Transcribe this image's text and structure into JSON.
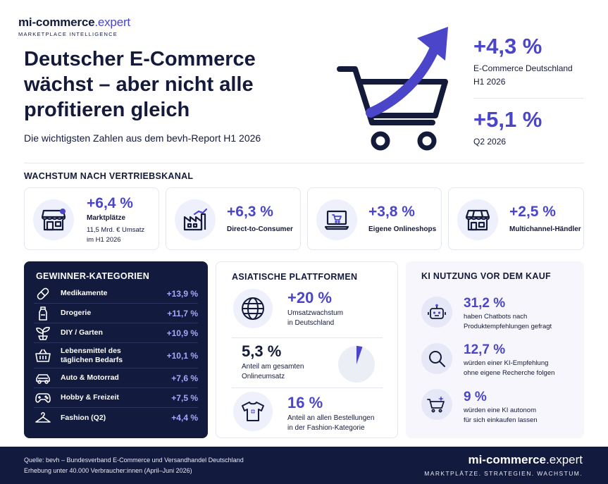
{
  "brand": {
    "name_bold": "mi-commerce",
    "name_light": ".expert",
    "tagline": "MARKETPLACE INTELLIGENCE"
  },
  "headline": {
    "title": "Deutscher E-Commerce wächst – aber nicht alle profitieren gleich",
    "subtitle": "Die wichtigsten Zahlen aus dem bevh-Report H1 2026"
  },
  "kpis": [
    {
      "value": "+4,3 %",
      "label_line1": "E-Commerce Deutschland",
      "label_line2": "H1 2026"
    },
    {
      "value": "+5,1 %",
      "label_line1": "Q2 2026",
      "label_line2": ""
    }
  ],
  "channels": {
    "title": "WACHSTUM NACH VERTRIEBSKANAL",
    "items": [
      {
        "value": "+6,4 %",
        "label": "Marktplätze",
        "sub_line1": "11,5 Mrd. € Umsatz",
        "sub_line2": "im H1 2026",
        "icon": "storefront-icon"
      },
      {
        "value": "+6,3 %",
        "label": "Direct-to-Consumer",
        "icon": "factory-icon"
      },
      {
        "value": "+3,8 %",
        "label": "Eigene Onlineshops",
        "icon": "laptop-cart-icon"
      },
      {
        "value": "+2,5 %",
        "label": "Multichannel-Händler",
        "icon": "shop-awning-icon"
      }
    ]
  },
  "winners": {
    "title": "GEWINNER-KATEGORIEN",
    "items": [
      {
        "name": "Medikamente",
        "value": "+13,9 %",
        "icon": "pill-icon"
      },
      {
        "name": "Drogerie",
        "value": "+11,7 %",
        "icon": "bottle-icon"
      },
      {
        "name": "DIY / Garten",
        "value": "+10,9 %",
        "icon": "plant-icon"
      },
      {
        "name_line1": "Lebensmittel des",
        "name_line2": "täglichen Bedarfs",
        "value": "+10,1 %",
        "icon": "basket-icon"
      },
      {
        "name": "Auto & Motorrad",
        "value": "+7,6 %",
        "icon": "car-icon"
      },
      {
        "name": "Hobby & Freizeit",
        "value": "+7,5 %",
        "icon": "gamepad-icon"
      },
      {
        "name": "Fashion (Q2)",
        "value": "+4,4 %",
        "icon": "hanger-icon"
      }
    ]
  },
  "asia": {
    "title": "ASIATISCHE PLATTFORMEN",
    "growth": {
      "value": "+20 %",
      "label_line1": "Umsatzwachstum",
      "label_line2": "in Deutschland",
      "icon": "globe-icon"
    },
    "share": {
      "value": "5,3 %",
      "label_line1": "Anteil am gesamten",
      "label_line2": "Onlineumsatz",
      "fraction": 0.053
    },
    "fashion": {
      "value": "16 %",
      "label_line1": "Anteil an allen Bestellungen",
      "label_line2": "in der Fashion-Kategorie",
      "icon": "tshirt-icon"
    }
  },
  "ai": {
    "title": "KI NUTZUNG VOR DEM KAUF",
    "items": [
      {
        "value": "31,2 %",
        "label_line1": "haben Chatbots nach",
        "label_line2": "Produktempfehlungen gefragt",
        "icon": "robot-icon"
      },
      {
        "value": "12,7 %",
        "label_line1": "würden einer KI-Empfehlung",
        "label_line2": "ohne eigene Recherche folgen",
        "icon": "magnifier-icon"
      },
      {
        "value": "9 %",
        "label_line1": "würden eine KI autonom",
        "label_line2": "für sich einkaufen lassen",
        "icon": "cart-sparkle-icon"
      }
    ]
  },
  "footer": {
    "source_line1": "Quelle: bevh – Bundesverband E-Commerce und Versandhandel Deutschland",
    "source_line2": "Erhebung unter 40.000 Verbraucher:innen (April–Juni 2026)",
    "brand_bold": "mi-commerce",
    "brand_light": ".expert",
    "tagline": "MARKTPLÄTZE. STRATEGIEN. WACHSTUM."
  },
  "colors": {
    "accent": "#4a45c9",
    "navy": "#121a3d",
    "light_panel": "#f6f6fc"
  }
}
